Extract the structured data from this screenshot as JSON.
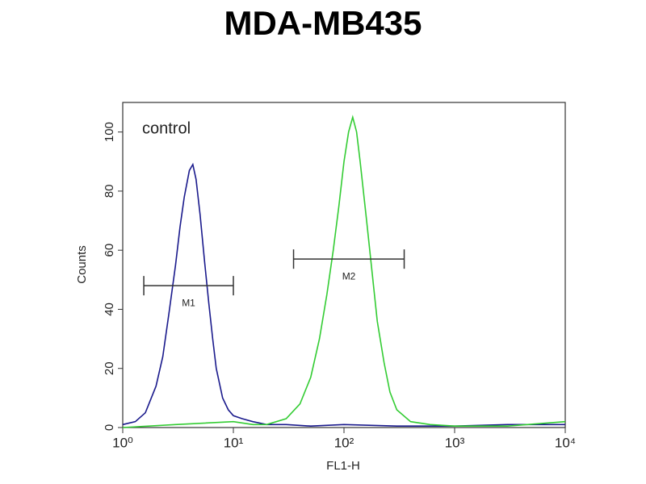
{
  "chart_data": {
    "type": "line",
    "title": "MDA-MB435",
    "xlabel": "FL1-H",
    "ylabel": "Counts",
    "annotation": "control",
    "xscale": "log",
    "xlim": [
      1,
      10000
    ],
    "ylim": [
      0,
      110
    ],
    "xticks": [
      {
        "value": 1,
        "label": "10⁰"
      },
      {
        "value": 10,
        "label": "10¹"
      },
      {
        "value": 100,
        "label": "10²"
      },
      {
        "value": 1000,
        "label": "10³"
      },
      {
        "value": 10000,
        "label": "10⁴"
      }
    ],
    "yticks": [
      0,
      20,
      40,
      60,
      80,
      100
    ],
    "series": [
      {
        "color": "#1a1a8c",
        "x": [
          1,
          1.3,
          1.6,
          2,
          2.3,
          2.6,
          3,
          3.3,
          3.6,
          4,
          4.3,
          4.6,
          5,
          5.5,
          6,
          6.5,
          7,
          8,
          9,
          10,
          12,
          15,
          20,
          30,
          50,
          100,
          300,
          1000,
          3000,
          10000
        ],
        "values": [
          1,
          2,
          5,
          14,
          24,
          38,
          55,
          68,
          78,
          87,
          89,
          84,
          72,
          56,
          42,
          30,
          20,
          10,
          6,
          4,
          3,
          2,
          1,
          1,
          0.5,
          1,
          0.5,
          0.5,
          1,
          1
        ]
      },
      {
        "color": "#33cc33",
        "x": [
          1,
          3,
          10,
          15,
          20,
          30,
          40,
          50,
          60,
          70,
          80,
          90,
          100,
          110,
          120,
          130,
          140,
          160,
          180,
          200,
          230,
          260,
          300,
          400,
          600,
          1000,
          3000,
          10000
        ],
        "values": [
          0,
          1,
          2,
          1,
          1,
          3,
          8,
          17,
          30,
          45,
          60,
          75,
          90,
          100,
          105,
          100,
          90,
          70,
          52,
          36,
          22,
          12,
          6,
          2,
          1,
          0.5,
          0.5,
          2
        ]
      }
    ],
    "markers": [
      {
        "label": "M1",
        "range": [
          1.55,
          10
        ],
        "y": 48
      },
      {
        "label": "M2",
        "range": [
          35,
          350
        ],
        "y": 57
      }
    ]
  }
}
